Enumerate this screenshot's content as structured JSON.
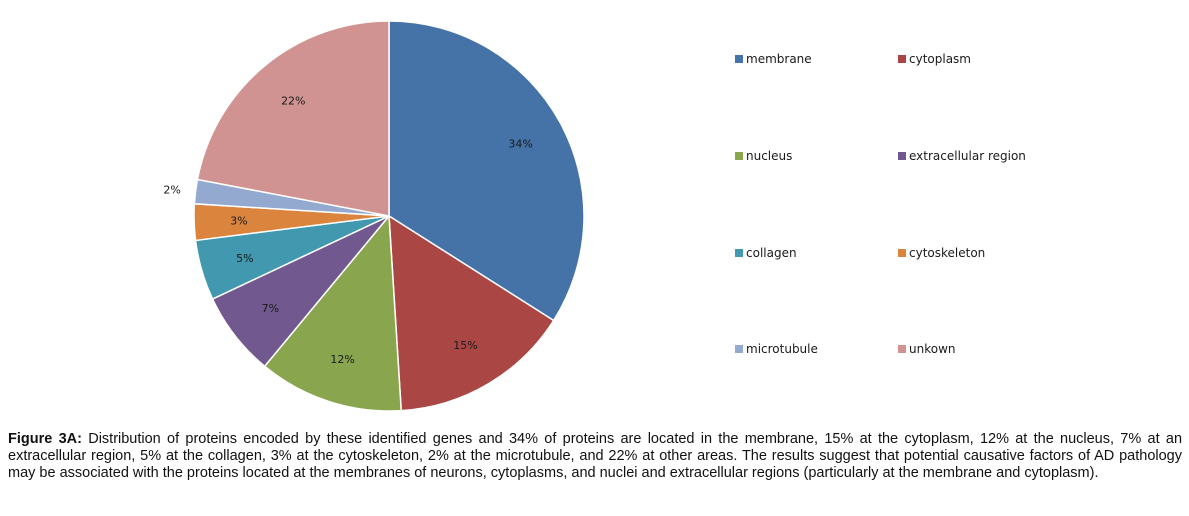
{
  "chart_data": {
    "type": "pie",
    "slices": [
      {
        "name": "membrane",
        "value": 34,
        "label": "34%",
        "color": "#4572A7"
      },
      {
        "name": "cytoplasm",
        "value": 15,
        "label": "15%",
        "color": "#AA4643"
      },
      {
        "name": "nucleus",
        "value": 12,
        "label": "12%",
        "color": "#89A54E"
      },
      {
        "name": "extracellular region",
        "value": 7,
        "label": "7%",
        "color": "#71588F"
      },
      {
        "name": "collagen",
        "value": 5,
        "label": "5%",
        "color": "#4198AF"
      },
      {
        "name": "cytoskeleton",
        "value": 3,
        "label": "3%",
        "color": "#DB843D"
      },
      {
        "name": "microtubule",
        "value": 2,
        "label": "2%",
        "color": "#93A9CF"
      },
      {
        "name": "unkown",
        "value": 22,
        "label": "22%",
        "color": "#D19392"
      }
    ],
    "legend_position": "right"
  },
  "caption": {
    "label": "Figure 3A:",
    "text": " Distribution of proteins encoded by these identified genes and 34% of proteins are located in the membrane, 15% at the cytoplasm, 12% at the nucleus, 7% at an extracellular region, 5% at the collagen, 3% at the cytoskeleton, 2% at the microtubule, and 22% at other areas. The results suggest that potential causative factors of AD pathology may be associated with the proteins located at the membranes of neurons, cytoplasms, and nuclei and extracellular regions (particularly at the membrane and cytoplasm)."
  }
}
